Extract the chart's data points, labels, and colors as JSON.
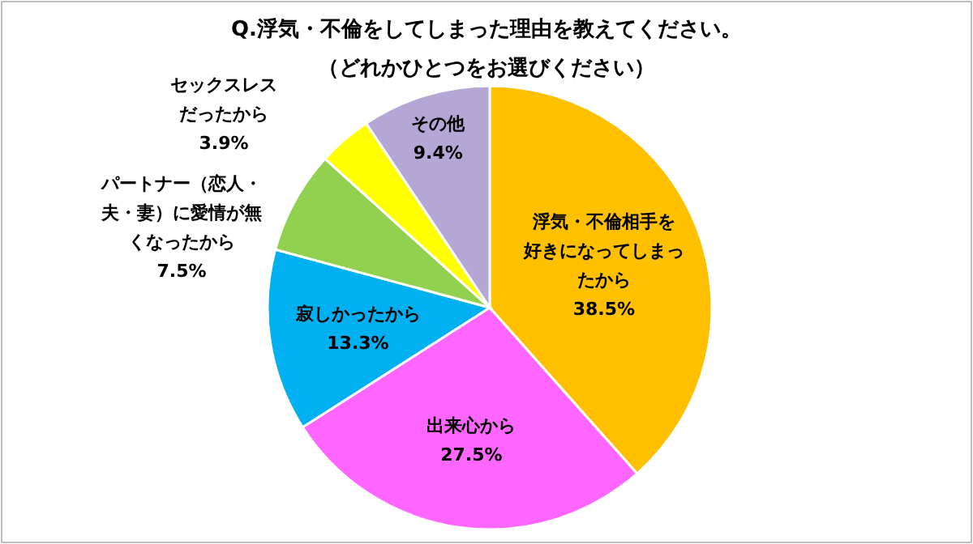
{
  "chart_data": {
    "type": "pie",
    "title": "Q.浮気・不倫をしてしまった理由を教えてください。",
    "subtitle": "（どれかひとつをお選びください）",
    "categories": [
      "浮気・不倫相手を好きになってしまったから",
      "出来心から",
      "寂しかったから",
      "パートナー（恋人・夫・妻）に愛情が無くなったから",
      "セックスレスだったから",
      "その他"
    ],
    "values": [
      38.5,
      27.5,
      13.3,
      7.5,
      3.9,
      9.4
    ],
    "value_labels": [
      "38.5%",
      "27.5%",
      "13.3%",
      "7.5%",
      "3.9%",
      "9.4%"
    ],
    "colors": [
      "#ffc000",
      "#ff66ff",
      "#00b0f0",
      "#92d050",
      "#ffff00",
      "#b4a7d6"
    ]
  }
}
